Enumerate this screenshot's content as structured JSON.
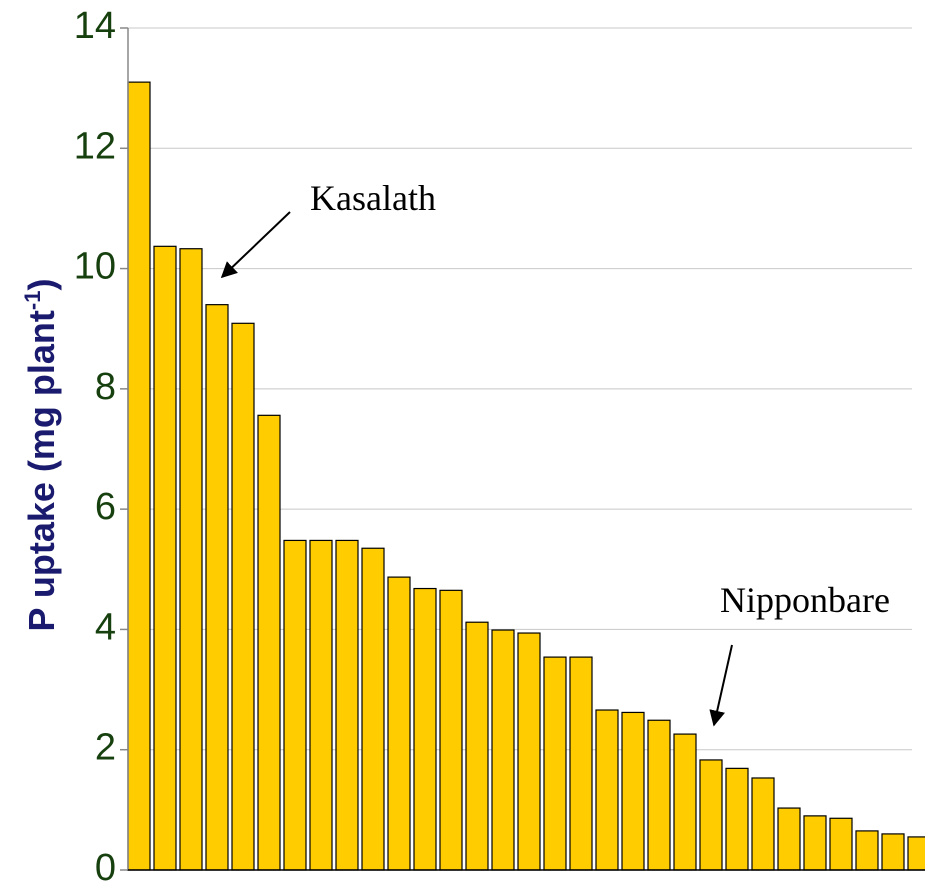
{
  "chart_data": {
    "type": "bar",
    "y_label": {
      "text": "P uptake (mg plant",
      "superscript": "-1",
      "end": ")"
    },
    "categories": [
      null,
      null,
      null,
      null,
      null,
      null,
      null,
      null,
      null,
      null,
      null,
      null,
      null,
      null,
      null,
      null,
      null,
      null,
      null,
      null,
      null,
      null,
      null,
      null,
      null,
      null,
      null,
      null,
      null,
      null,
      null
    ],
    "values": [
      13.1,
      10.37,
      10.33,
      9.4,
      9.09,
      7.56,
      5.48,
      5.48,
      5.48,
      5.35,
      4.87,
      4.68,
      4.65,
      4.12,
      3.99,
      3.94,
      3.54,
      3.54,
      2.66,
      2.62,
      2.49,
      2.26,
      1.83,
      1.69,
      1.53,
      1.03,
      0.9,
      0.86,
      0.65,
      0.6,
      0.55
    ],
    "color": "#ffcc00",
    "ylim": [
      0,
      14
    ],
    "yticks": [
      0,
      2,
      4,
      6,
      8,
      10,
      12,
      14
    ],
    "grid": true,
    "annotations": [
      {
        "text": "Kasalath"
      },
      {
        "text": "Nipponbare"
      }
    ]
  }
}
